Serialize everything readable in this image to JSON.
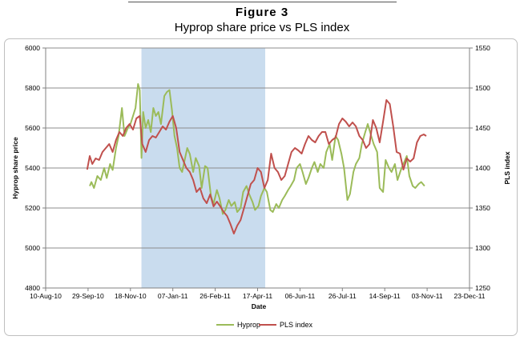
{
  "figure_label": "Figure 3",
  "chart_data": {
    "type": "line",
    "title": "Hyprop share price vs PLS index",
    "xlabel": "Date",
    "ylabel": "Hyprop share price",
    "y2label": "PLS index",
    "x_ticks": [
      "10-Aug-10",
      "29-Sep-10",
      "18-Nov-10",
      "07-Jan-11",
      "26-Feb-11",
      "17-Apr-11",
      "06-Jun-11",
      "26-Jul-11",
      "14-Sep-11",
      "03-Nov-11",
      "23-Dec-11"
    ],
    "y_ticks": [
      4800,
      5000,
      5200,
      5400,
      5600,
      5800,
      6000
    ],
    "y2_ticks": [
      1250,
      1300,
      1350,
      1400,
      1450,
      1500,
      1550
    ],
    "ylim": [
      4800,
      6000
    ],
    "y2lim": [
      1250,
      1550
    ],
    "grid": true,
    "legend_position": "bottom",
    "shaded_period": [
      "2010-12-01",
      "2011-04-26"
    ],
    "shade_color": "#c9dcee",
    "series": [
      {
        "name": "Hyprop",
        "axis": "left",
        "color": "#9bbb59",
        "x": [
          "2010-10-01",
          "2010-10-03",
          "2010-10-06",
          "2010-10-10",
          "2010-10-14",
          "2010-10-18",
          "2010-10-21",
          "2010-10-25",
          "2010-10-28",
          "2010-11-01",
          "2010-11-04",
          "2010-11-08",
          "2010-11-11",
          "2010-11-15",
          "2010-11-18",
          "2010-11-21",
          "2010-11-24",
          "2010-11-27",
          "2010-11-29",
          "2010-12-01",
          "2010-12-03",
          "2010-12-06",
          "2010-12-09",
          "2010-12-12",
          "2010-12-15",
          "2010-12-18",
          "2010-12-21",
          "2010-12-24",
          "2010-12-28",
          "2010-12-31",
          "2011-01-03",
          "2011-01-06",
          "2011-01-09",
          "2011-01-12",
          "2011-01-15",
          "2011-01-18",
          "2011-01-21",
          "2011-01-24",
          "2011-01-27",
          "2011-01-31",
          "2011-02-03",
          "2011-02-07",
          "2011-02-10",
          "2011-02-14",
          "2011-02-17",
          "2011-02-21",
          "2011-02-24",
          "2011-02-28",
          "2011-03-03",
          "2011-03-07",
          "2011-03-10",
          "2011-03-14",
          "2011-03-17",
          "2011-03-21",
          "2011-03-24",
          "2011-03-28",
          "2011-03-31",
          "2011-04-04",
          "2011-04-07",
          "2011-04-11",
          "2011-04-14",
          "2011-04-18",
          "2011-04-21",
          "2011-04-25",
          "2011-04-28",
          "2011-05-02",
          "2011-05-05",
          "2011-05-09",
          "2011-05-12",
          "2011-05-16",
          "2011-05-19",
          "2011-05-23",
          "2011-05-26",
          "2011-05-30",
          "2011-06-02",
          "2011-06-06",
          "2011-06-09",
          "2011-06-13",
          "2011-06-16",
          "2011-06-20",
          "2011-06-23",
          "2011-06-27",
          "2011-06-30",
          "2011-07-04",
          "2011-07-07",
          "2011-07-11",
          "2011-07-14",
          "2011-07-18",
          "2011-07-21",
          "2011-07-25",
          "2011-07-28",
          "2011-08-01",
          "2011-08-04",
          "2011-08-08",
          "2011-08-11",
          "2011-08-15",
          "2011-08-18",
          "2011-08-22",
          "2011-08-25",
          "2011-08-29",
          "2011-09-01",
          "2011-09-05",
          "2011-09-08",
          "2011-09-12",
          "2011-09-15",
          "2011-09-19",
          "2011-09-22",
          "2011-09-26",
          "2011-09-29",
          "2011-10-03",
          "2011-10-06",
          "2011-10-10",
          "2011-10-13",
          "2011-10-17",
          "2011-10-20",
          "2011-10-24",
          "2011-10-27",
          "2011-10-31"
        ],
        "values": [
          5310,
          5330,
          5300,
          5360,
          5340,
          5400,
          5350,
          5420,
          5390,
          5500,
          5560,
          5700,
          5560,
          5600,
          5620,
          5660,
          5700,
          5820,
          5790,
          5450,
          5680,
          5600,
          5640,
          5580,
          5700,
          5660,
          5680,
          5620,
          5760,
          5780,
          5790,
          5690,
          5560,
          5500,
          5400,
          5380,
          5440,
          5500,
          5470,
          5380,
          5450,
          5410,
          5300,
          5410,
          5400,
          5260,
          5220,
          5290,
          5250,
          5170,
          5190,
          5240,
          5210,
          5230,
          5180,
          5200,
          5280,
          5310,
          5270,
          5230,
          5190,
          5210,
          5260,
          5300,
          5280,
          5190,
          5180,
          5220,
          5200,
          5240,
          5260,
          5290,
          5310,
          5340,
          5400,
          5420,
          5380,
          5320,
          5350,
          5400,
          5430,
          5380,
          5420,
          5400,
          5480,
          5520,
          5440,
          5560,
          5540,
          5470,
          5400,
          5240,
          5270,
          5380,
          5420,
          5450,
          5520,
          5580,
          5620,
          5560,
          5520,
          5480,
          5300,
          5280,
          5440,
          5400,
          5380,
          5420,
          5340,
          5390,
          5420,
          5460,
          5360,
          5310,
          5300,
          5320,
          5330,
          5310
        ]
      },
      {
        "name": "PLS index",
        "axis": "right",
        "color": "#c0504d",
        "x": [
          "2010-09-28",
          "2010-10-01",
          "2010-10-04",
          "2010-10-08",
          "2010-10-12",
          "2010-10-16",
          "2010-10-20",
          "2010-10-24",
          "2010-10-28",
          "2010-11-01",
          "2010-11-05",
          "2010-11-09",
          "2010-11-13",
          "2010-11-17",
          "2010-11-21",
          "2010-11-25",
          "2010-11-29",
          "2010-12-02",
          "2010-12-06",
          "2010-12-10",
          "2010-12-14",
          "2010-12-18",
          "2010-12-22",
          "2010-12-26",
          "2010-12-30",
          "2011-01-03",
          "2011-01-07",
          "2011-01-11",
          "2011-01-15",
          "2011-01-19",
          "2011-01-23",
          "2011-01-27",
          "2011-01-31",
          "2011-02-04",
          "2011-02-08",
          "2011-02-12",
          "2011-02-16",
          "2011-02-20",
          "2011-02-24",
          "2011-02-28",
          "2011-03-04",
          "2011-03-08",
          "2011-03-12",
          "2011-03-16",
          "2011-03-20",
          "2011-03-24",
          "2011-03-28",
          "2011-04-01",
          "2011-04-05",
          "2011-04-09",
          "2011-04-13",
          "2011-04-17",
          "2011-04-21",
          "2011-04-25",
          "2011-04-29",
          "2011-05-03",
          "2011-05-07",
          "2011-05-11",
          "2011-05-15",
          "2011-05-19",
          "2011-05-23",
          "2011-05-27",
          "2011-05-31",
          "2011-06-04",
          "2011-06-08",
          "2011-06-12",
          "2011-06-16",
          "2011-06-20",
          "2011-06-24",
          "2011-06-28",
          "2011-07-02",
          "2011-07-06",
          "2011-07-10",
          "2011-07-14",
          "2011-07-18",
          "2011-07-22",
          "2011-07-26",
          "2011-07-30",
          "2011-08-03",
          "2011-08-07",
          "2011-08-11",
          "2011-08-15",
          "2011-08-19",
          "2011-08-23",
          "2011-08-27",
          "2011-08-31",
          "2011-09-04",
          "2011-09-08",
          "2011-09-12",
          "2011-09-16",
          "2011-09-20",
          "2011-09-24",
          "2011-09-28",
          "2011-10-02",
          "2011-10-06",
          "2011-10-10",
          "2011-10-14",
          "2011-10-18",
          "2011-10-22",
          "2011-10-26",
          "2011-10-30",
          "2011-11-02"
        ],
        "values": [
          1398,
          1415,
          1405,
          1412,
          1410,
          1420,
          1425,
          1430,
          1420,
          1435,
          1445,
          1440,
          1450,
          1455,
          1448,
          1462,
          1465,
          1430,
          1420,
          1435,
          1440,
          1438,
          1445,
          1452,
          1448,
          1458,
          1465,
          1450,
          1420,
          1410,
          1400,
          1395,
          1385,
          1370,
          1375,
          1362,
          1356,
          1367,
          1352,
          1358,
          1352,
          1345,
          1340,
          1330,
          1318,
          1328,
          1335,
          1350,
          1365,
          1380,
          1385,
          1400,
          1395,
          1375,
          1385,
          1418,
          1400,
          1395,
          1385,
          1390,
          1405,
          1420,
          1425,
          1422,
          1418,
          1430,
          1440,
          1435,
          1432,
          1440,
          1445,
          1445,
          1430,
          1435,
          1438,
          1455,
          1462,
          1458,
          1452,
          1457,
          1452,
          1440,
          1435,
          1425,
          1430,
          1460,
          1450,
          1432,
          1458,
          1485,
          1480,
          1452,
          1420,
          1418,
          1398,
          1412,
          1408,
          1412,
          1432,
          1440,
          1442,
          1440
        ]
      }
    ]
  }
}
